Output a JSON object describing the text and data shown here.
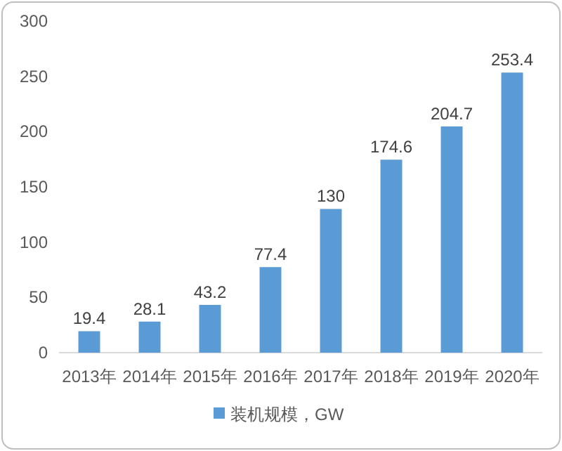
{
  "chart_data": {
    "type": "bar",
    "categories": [
      "2013年",
      "2014年",
      "2015年",
      "2016年",
      "2017年",
      "2018年",
      "2019年",
      "2020年"
    ],
    "series": [
      {
        "name": "装机规模，GW",
        "color": "#5b9bd5",
        "values": [
          19.4,
          28.1,
          43.2,
          77.4,
          130,
          174.6,
          204.7,
          253.4
        ]
      }
    ],
    "ylim": [
      0,
      300
    ],
    "yticks": [
      0,
      50,
      100,
      150,
      200,
      250,
      300
    ],
    "data_labels": true,
    "legend": "bottom",
    "grid": false
  }
}
